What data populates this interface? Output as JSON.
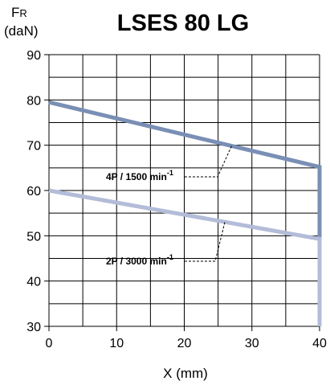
{
  "chart_data": {
    "type": "line",
    "title": "LSES 80 LG",
    "ylabel_main": "F",
    "ylabel_sub": "R",
    "ylabel_unit": "(daN)",
    "xlabel": "X (mm)",
    "xlim": [
      0,
      40
    ],
    "ylim": [
      30,
      90
    ],
    "x_ticks": [
      0,
      10,
      20,
      30,
      40
    ],
    "y_ticks": [
      30,
      40,
      50,
      60,
      70,
      80,
      90
    ],
    "grid": true,
    "x_grid_step": 5,
    "y_grid_step": 5,
    "series": [
      {
        "name": "4P / 1500 min-1",
        "label_text": "4P / 1500 min",
        "label_exp": "-1",
        "color": "#7a8fb5",
        "x": [
          0,
          40
        ],
        "y": [
          79.5,
          65.2
        ],
        "drop_to": 30
      },
      {
        "name": "2P / 3000 min-1",
        "label_text": "2P / 3000 min",
        "label_exp": "-1",
        "color": "#b3bcd8",
        "x": [
          0,
          40
        ],
        "y": [
          60,
          49.3
        ],
        "drop_to": 30
      }
    ]
  }
}
